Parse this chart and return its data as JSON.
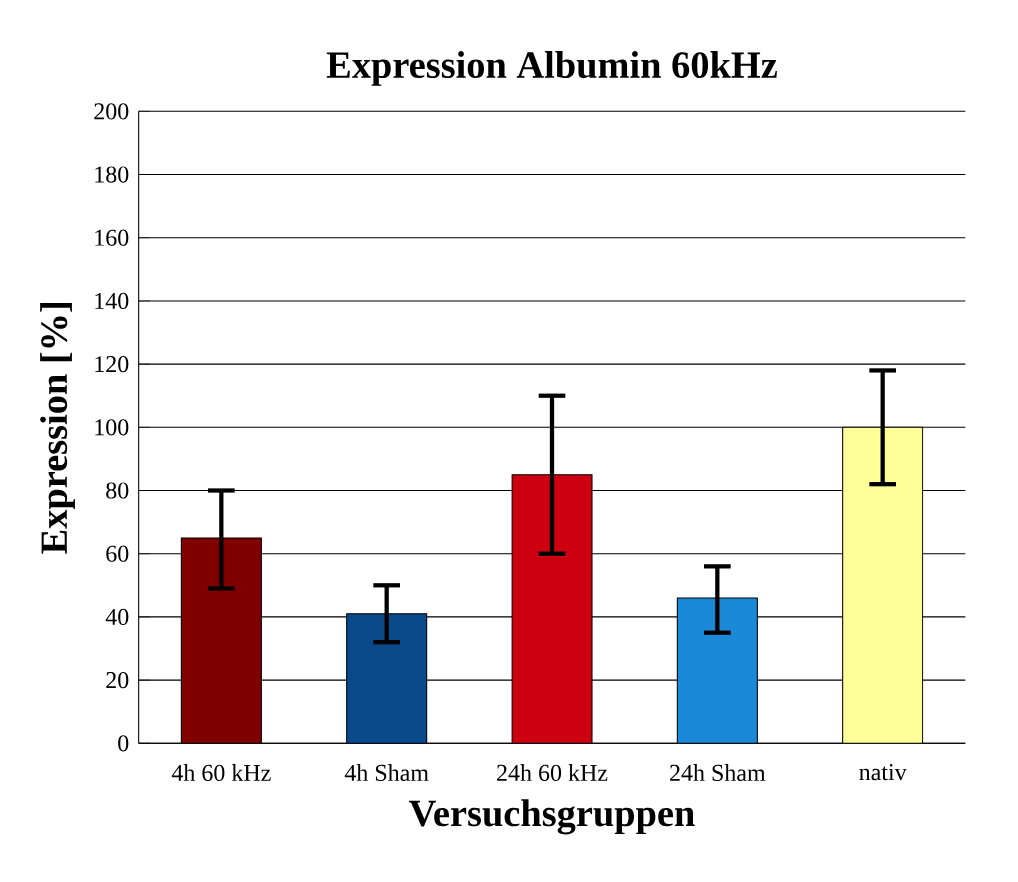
{
  "chart_data": {
    "type": "bar",
    "title": "Expression Albumin 60kHz",
    "xlabel": "Versuchsgruppen",
    "ylabel": "Expression [%]",
    "categories": [
      "4h 60 kHz",
      "4h Sham",
      "24h 60 kHz",
      "24h Sham",
      "nativ"
    ],
    "values": [
      65,
      41,
      85,
      46,
      100
    ],
    "errors": [
      [
        49,
        80
      ],
      [
        32,
        50
      ],
      [
        60,
        110
      ],
      [
        35,
        56
      ],
      [
        82,
        118
      ]
    ],
    "colors": [
      "#800000",
      "#0a4a8a",
      "#cc0010",
      "#1a8ad8",
      "#ffff99"
    ],
    "ylim": [
      0,
      200
    ],
    "yticks": [
      0,
      20,
      40,
      60,
      80,
      100,
      120,
      140,
      160,
      180,
      200
    ],
    "grid": "y"
  }
}
